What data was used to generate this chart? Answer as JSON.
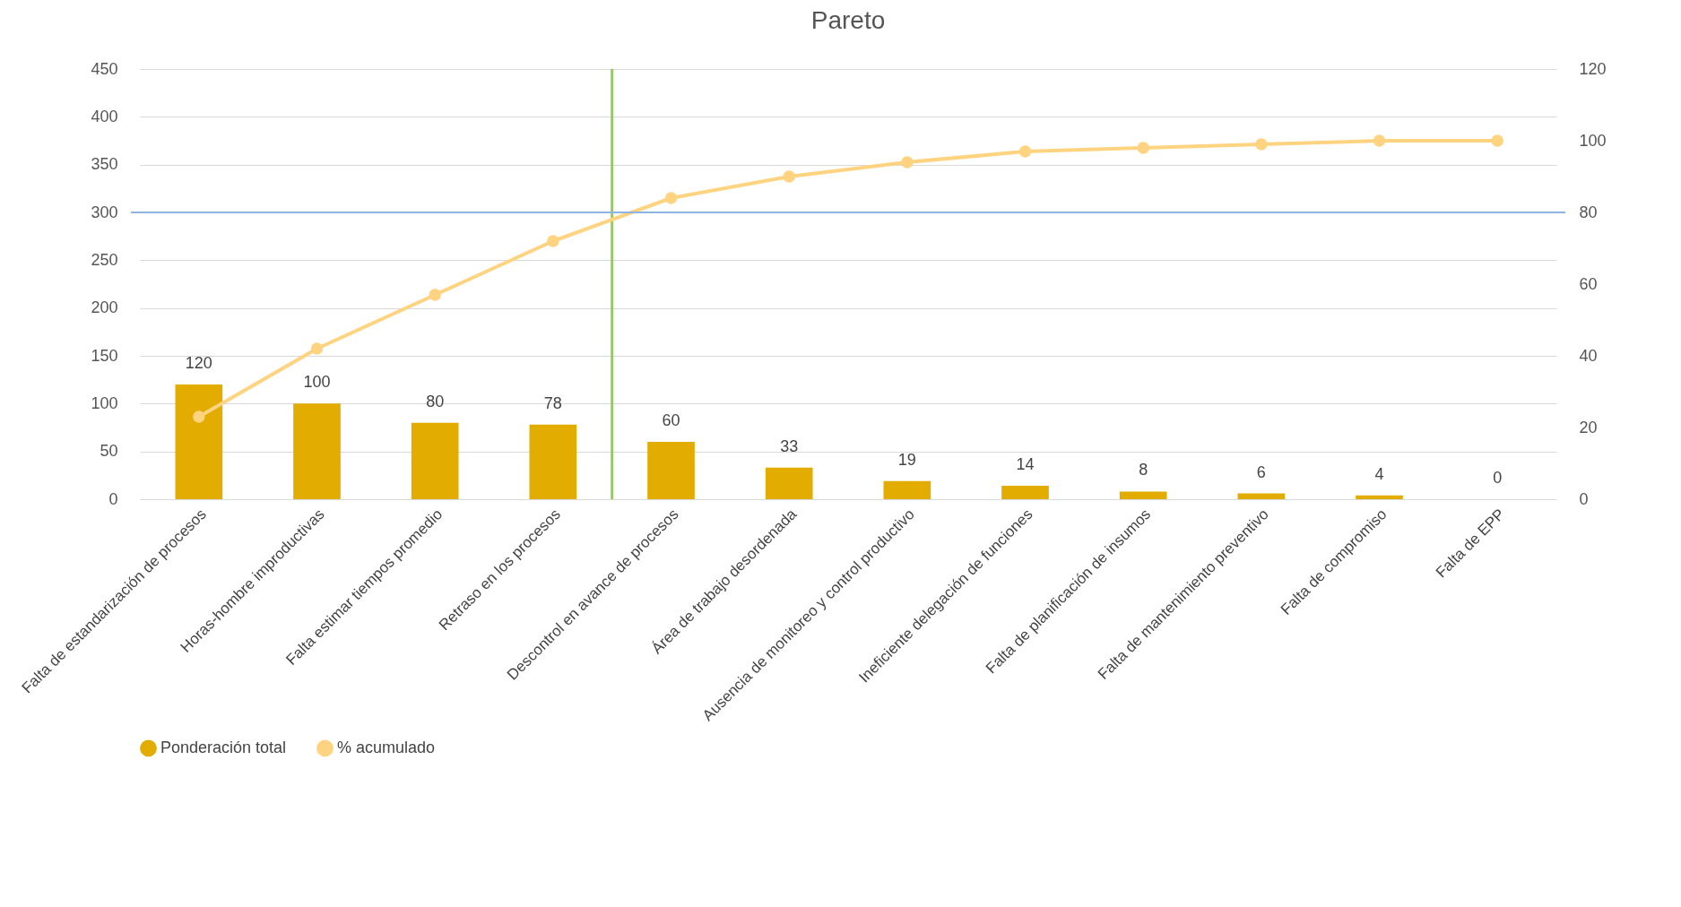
{
  "chart_data": {
    "type": "bar",
    "title": "Pareto",
    "categories": [
      "Falta de estandarización de procesos",
      "Horas-hombre improductivas",
      "Falta estimar tiempos promedio",
      "Retraso en los procesos",
      "Descontrol en avance de procesos",
      "Área de trabajo desordenada",
      "Ausencia de monitoreo y control productivo",
      "Ineficiente delegación de funciones",
      "Falta de planificación de insumos",
      "Falta de mantenimiento preventivo",
      "Falta de compromiso",
      "Falta de EPP"
    ],
    "series": [
      {
        "name": "Ponderación total",
        "color": "#e2ac00",
        "values": [
          120,
          100,
          80,
          78,
          60,
          33,
          19,
          14,
          8,
          6,
          4,
          0
        ],
        "value_labels": [
          "120",
          "100",
          "80",
          "78",
          "60",
          "33",
          "19",
          "14",
          "8",
          "6",
          "4",
          "0"
        ]
      },
      {
        "name": "% acumulado",
        "type": "line",
        "axis": "y2",
        "color": "#ffd37f",
        "marker": "circle",
        "values": [
          23,
          42,
          57,
          72,
          84,
          90,
          94,
          97,
          98,
          99,
          100,
          100
        ]
      }
    ],
    "ylim": [
      0,
      450
    ],
    "yticks": [
      0,
      50,
      100,
      150,
      200,
      250,
      300,
      350,
      400,
      450
    ],
    "y2lim": [
      0,
      120
    ],
    "y2ticks": [
      0,
      20,
      40,
      60,
      80,
      100,
      120
    ],
    "ref_lines": [
      {
        "axis": "y2",
        "value": 80,
        "color": "#8fb4e3"
      },
      {
        "axis": "x",
        "value": "Descontrol en avance de procesos",
        "color": "#92d050"
      }
    ],
    "grid": "y",
    "legend": "bottom"
  }
}
